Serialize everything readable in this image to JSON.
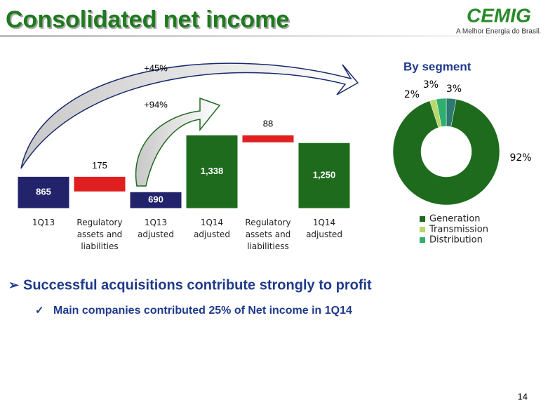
{
  "slide": {
    "title": "Consolidated net income",
    "logo": "CEMIG",
    "tagline": "A Melhor Energia do Brasil.",
    "bullets": [
      "Successful acquisitions contribute strongly to profit",
      "Main companies contributed 25% of Net income in 1Q14"
    ],
    "page_number": "14"
  },
  "chart_data": [
    {
      "type": "waterfall",
      "categories": [
        "1Q13",
        "Regulatory assets and liabilities",
        "1Q13 adjusted",
        "1Q14 adjusted",
        "Regulatory assets and liabilitiess",
        "1Q14 adjusted"
      ],
      "values": [
        865,
        -175,
        690,
        1338,
        -88,
        1250
      ],
      "value_labels": [
        "865",
        "175",
        "690",
        "1,338",
        "88",
        "1,250"
      ],
      "kinds": [
        "total",
        "delta",
        "total",
        "total",
        "delta",
        "total"
      ],
      "colors": [
        "#23236b",
        "#e02020",
        "#23236b",
        "#1e6b1e",
        "#e02020",
        "#1e6b1e"
      ],
      "ylim": [
        500,
        1500
      ],
      "annotations": [
        "+45%",
        "+94%"
      ]
    },
    {
      "type": "donut",
      "title": "By segment",
      "categories": [
        null,
        "Generation",
        "Transmission",
        "Distribution"
      ],
      "values": [
        3,
        92,
        2,
        3
      ],
      "value_labels": [
        "3%",
        "92%",
        "2%",
        "3%"
      ],
      "colors": [
        "#2c7a72",
        "#1e6b1e",
        "#b8d86a",
        "#2fae6e"
      ]
    }
  ]
}
